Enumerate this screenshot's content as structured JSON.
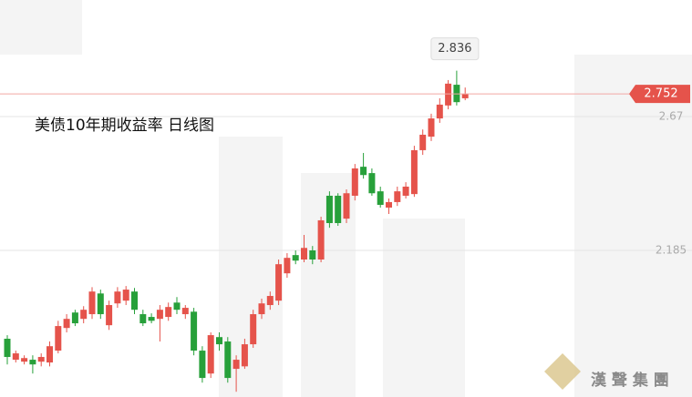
{
  "chart_data": {
    "type": "candlestick",
    "title": "美债10年期收益率  日线图",
    "open": [
      1.865,
      1.789,
      1.782,
      1.789,
      1.782,
      1.779,
      1.822,
      1.904,
      1.96,
      1.937,
      1.954,
      2.029,
      1.914,
      1.993,
      2.003,
      2.036,
      1.954,
      1.944,
      1.937,
      1.944,
      1.996,
      1.954,
      1.963,
      1.822,
      1.739,
      1.871,
      1.855,
      1.756,
      1.765,
      1.845,
      1.954,
      1.987,
      2.003,
      2.102,
      2.168,
      2.152,
      2.185,
      2.152,
      2.383,
      2.383,
      2.3,
      2.383,
      2.488,
      2.465,
      2.399,
      2.34,
      2.36,
      2.383,
      2.389,
      2.548,
      2.597,
      2.663,
      2.71,
      2.785,
      2.736
    ],
    "high": [
      1.878,
      1.822,
      1.805,
      1.805,
      1.812,
      1.855,
      1.93,
      1.954,
      1.97,
      1.983,
      2.052,
      2.043,
      2.003,
      2.052,
      2.056,
      2.049,
      1.97,
      1.957,
      1.987,
      1.996,
      2.016,
      1.987,
      1.977,
      1.838,
      1.888,
      1.888,
      1.871,
      1.805,
      1.865,
      1.97,
      2.01,
      2.036,
      2.152,
      2.175,
      2.185,
      2.241,
      2.201,
      2.307,
      2.399,
      2.392,
      2.406,
      2.498,
      2.538,
      2.482,
      2.416,
      2.373,
      2.416,
      2.432,
      2.564,
      2.623,
      2.68,
      2.736,
      2.802,
      2.836,
      2.775
    ],
    "low": [
      1.772,
      1.779,
      1.772,
      1.739,
      1.765,
      1.765,
      1.812,
      1.888,
      1.911,
      1.921,
      1.937,
      1.937,
      1.897,
      1.977,
      1.987,
      1.954,
      1.911,
      1.921,
      1.855,
      1.93,
      1.954,
      1.937,
      1.805,
      1.706,
      1.723,
      1.822,
      1.706,
      1.673,
      1.756,
      1.832,
      1.937,
      1.97,
      1.987,
      2.086,
      2.135,
      2.142,
      2.135,
      2.142,
      2.267,
      2.274,
      2.284,
      2.366,
      2.445,
      2.383,
      2.34,
      2.317,
      2.346,
      2.373,
      2.379,
      2.531,
      2.581,
      2.647,
      2.696,
      2.71,
      2.729
    ],
    "close": [
      1.799,
      1.812,
      1.795,
      1.772,
      1.799,
      1.838,
      1.911,
      1.937,
      1.921,
      1.97,
      2.036,
      1.954,
      1.987,
      2.036,
      2.043,
      1.97,
      1.921,
      1.93,
      1.97,
      1.98,
      1.97,
      1.977,
      1.822,
      1.723,
      1.878,
      1.845,
      1.723,
      1.789,
      1.845,
      1.954,
      1.993,
      2.02,
      2.135,
      2.158,
      2.148,
      2.194,
      2.152,
      2.294,
      2.284,
      2.284,
      2.392,
      2.482,
      2.458,
      2.392,
      2.35,
      2.36,
      2.399,
      2.416,
      2.548,
      2.604,
      2.663,
      2.713,
      2.789,
      2.722,
      2.752
    ],
    "up_color": "#e5534b",
    "down_color": "#27a03a",
    "ylim": [
      1.654,
      3.092
    ],
    "yticks": [
      2.185,
      2.67
    ],
    "grid": true,
    "watermark": "漢 聲 集 團"
  }
}
